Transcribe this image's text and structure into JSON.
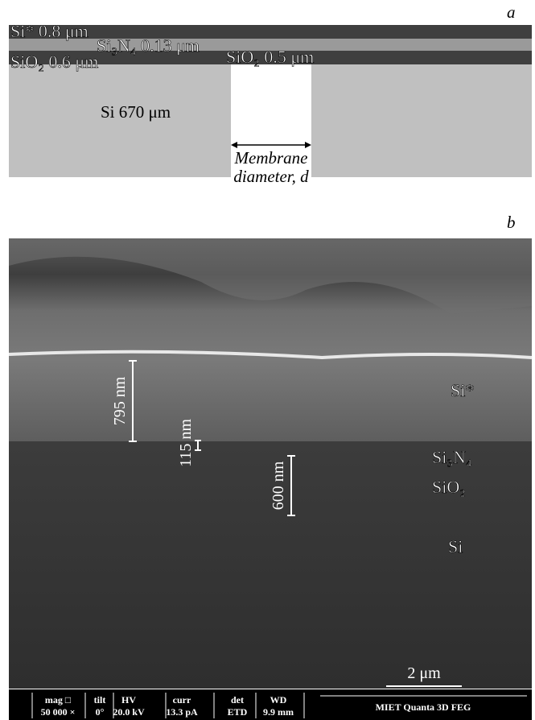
{
  "panel_a": {
    "label": "a",
    "layers": [
      "Si* 0.8 μm",
      "Si₃N₄ 0.13 μm",
      "SiO₂ 0.6 μm",
      "SiO₂ 0.5 μm",
      "Si 670 μm"
    ],
    "membrane": [
      "Membrane",
      "diameter, d"
    ]
  },
  "panel_b": {
    "label": "b",
    "measurements": [
      "795 nm",
      "115 nm",
      "600 nm"
    ],
    "layers": [
      "Si*",
      "Si₃N₄",
      "SiO₂",
      "Si"
    ],
    "scale_bar": "2 μm",
    "info_bar": [
      {
        "label": "mag □",
        "value": "50 000 ×"
      },
      {
        "label": "tilt",
        "value": "0°"
      },
      {
        "label": "HV",
        "value": "20.0 kV"
      },
      {
        "label": "curr",
        "value": "13.3 pA"
      },
      {
        "label": "det",
        "value": "ETD"
      },
      {
        "label": "WD",
        "value": "9.9 mm"
      }
    ],
    "instrument": "MIET Quanta 3D FEG"
  }
}
